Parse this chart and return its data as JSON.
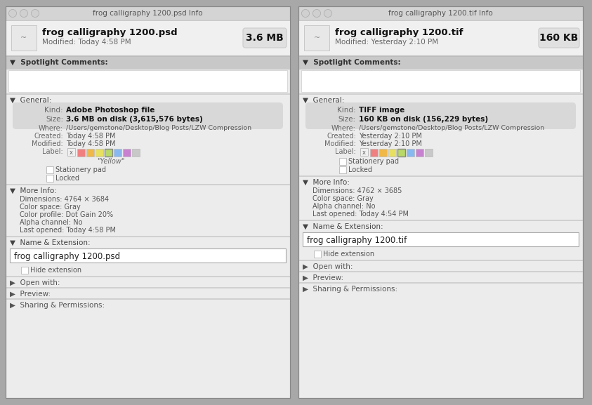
{
  "bg_color": "#a8a8a8",
  "panel_bg": "#ececec",
  "titlebar_bg": "#d4d4d4",
  "section_header_bg": "#c8c8c8",
  "white_box": "#ffffff",
  "left_panel": {
    "title": "frog calligraphy 1200.psd Info",
    "filename": "frog calligraphy 1200.psd",
    "modified": "Modified: Today 4:58 PM",
    "size_badge": "3.6 MB",
    "kind_label": "Kind:",
    "kind_value": "Adobe Photoshop file",
    "size_label": "Size:",
    "size_value": "3.6 MB on disk (3,615,576 bytes)",
    "where_label": "Where:",
    "where_value": "/Users/gemstone/Desktop/Blog Posts/LZW Compression",
    "created_label": "Created:",
    "created_value": "Today 4:58 PM",
    "modified_label": "Modified:",
    "modified_value": "Today 4:58 PM",
    "label_label": "Label:",
    "yellow_label": "\"Yellow\"",
    "dimensions": "Dimensions: 4764 × 3684",
    "colorspace": "Color space: Gray",
    "colorprofile": "Color profile: Dot Gain 20%",
    "alpha": "Alpha channel: No",
    "lastopened": "Last opened: Today 4:58 PM",
    "name_ext_value": "frog calligraphy 1200.psd",
    "has_yellow": true,
    "has_colorprofile": true
  },
  "right_panel": {
    "title": "frog calligraphy 1200.tif Info",
    "filename": "frog calligraphy 1200.tif",
    "modified": "Modified: Yesterday 2:10 PM",
    "size_badge": "160 KB",
    "kind_label": "Kind:",
    "kind_value": "TIFF image",
    "size_label": "Size:",
    "size_value": "160 KB on disk (156,229 bytes)",
    "where_label": "Where:",
    "where_value": "/Users/gemstone/Desktop/Blog Posts/LZW Compression",
    "created_label": "Created:",
    "created_value": "Yesterday 2:10 PM",
    "modified_label": "Modified:",
    "modified_value": "Yesterday 2:10 PM",
    "label_label": "Label:",
    "yellow_label": "",
    "dimensions": "Dimensions: 4762 × 3685",
    "colorspace": "Color space: Gray",
    "colorprofile": "",
    "alpha": "Alpha channel: No",
    "lastopened": "Last opened: Today 4:54 PM",
    "name_ext_value": "frog calligraphy 1200.tif",
    "has_yellow": false,
    "has_colorprofile": false
  },
  "label_colors": [
    "#f08080",
    "#f0b848",
    "#e8e060",
    "#b8d868",
    "#88b8f0",
    "#c880d0",
    "#c8c8c8"
  ],
  "label_selected_idx": 3
}
